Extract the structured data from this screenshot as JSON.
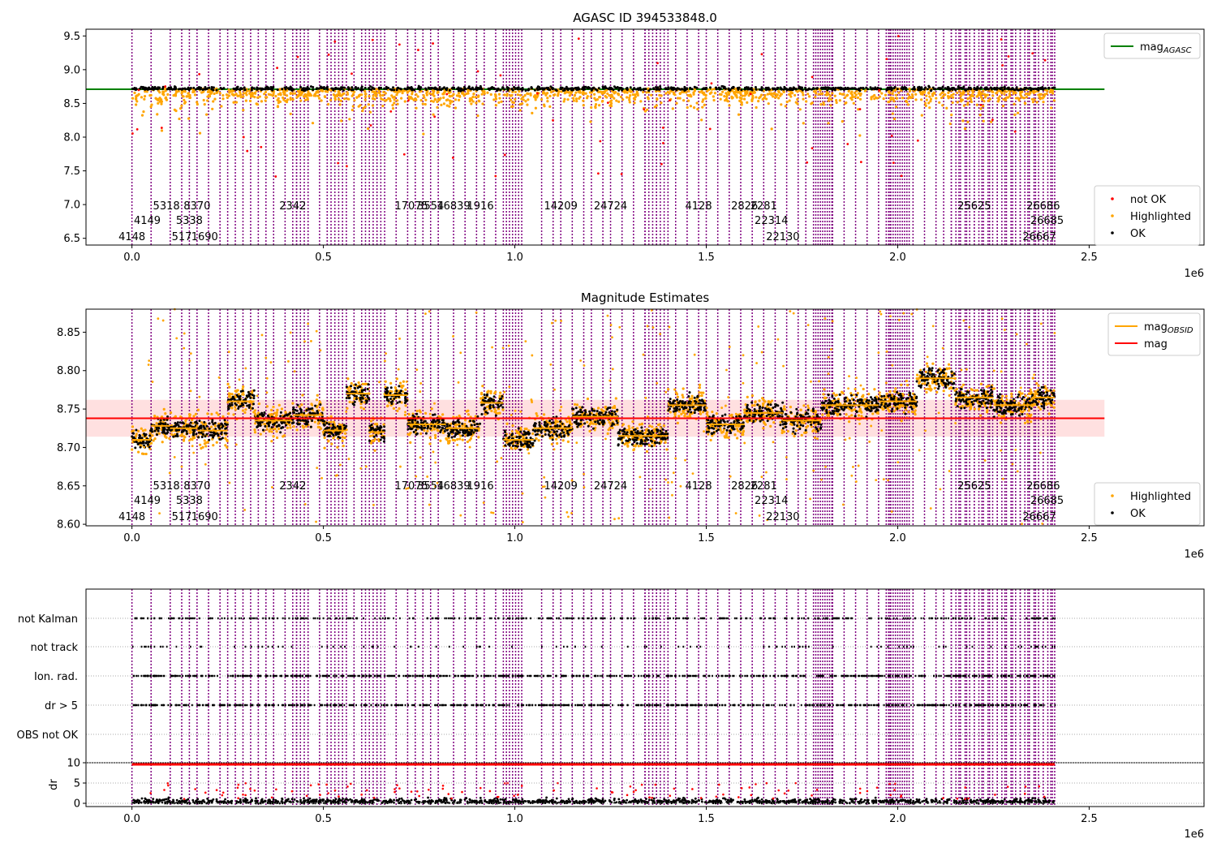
{
  "chart_data": [
    {
      "type": "scatter",
      "title": "AGASC ID 394533848.0",
      "x_exponent_label": "1e6",
      "xlim": [
        -0.12,
        2.8
      ],
      "ylim": [
        6.4,
        9.6
      ],
      "xticks": [
        0.0,
        0.5,
        1.0,
        1.5,
        2.0,
        2.5
      ],
      "xtick_labels": [
        "0.0",
        "0.5",
        "1.0",
        "1.5",
        "2.0",
        "2.5"
      ],
      "yticks": [
        6.5,
        7.0,
        7.5,
        8.0,
        8.5,
        9.0,
        9.5
      ],
      "ytick_labels": [
        "6.5",
        "7.0",
        "7.5",
        "8.0",
        "8.5",
        "9.0",
        "9.5"
      ],
      "legend_top": {
        "position": "top-right",
        "entries": [
          {
            "label": "mag",
            "sub": "AGASC",
            "color": "#008000",
            "kind": "line"
          }
        ]
      },
      "legend_bottom": {
        "position": "bottom-right",
        "entries": [
          {
            "label": "not OK",
            "color": "#ff0000",
            "kind": "dot"
          },
          {
            "label": "Highlighted",
            "color": "#ffa500",
            "kind": "dot"
          },
          {
            "label": "OK",
            "color": "#000000",
            "kind": "dot"
          }
        ]
      },
      "reference_line": {
        "y": 8.71,
        "x_range": [
          -0.12,
          2.54
        ],
        "color": "#008000"
      },
      "obsid_labels": [
        {
          "x": 0.0,
          "row": 0,
          "text": "4148"
        },
        {
          "x": 0.04,
          "row": 1,
          "text": "4149"
        },
        {
          "x": 0.09,
          "row": 2,
          "text": "5318"
        },
        {
          "x": 0.13,
          "row": 0,
          "text": "517"
        },
        {
          "x": 0.15,
          "row": 1,
          "text": "5338"
        },
        {
          "x": 0.17,
          "row": 2,
          "text": "8370"
        },
        {
          "x": 0.19,
          "row": 0,
          "text": "1690"
        },
        {
          "x": 0.42,
          "row": 2,
          "text": "2342"
        },
        {
          "x": 0.73,
          "row": 2,
          "text": "17075"
        },
        {
          "x": 0.78,
          "row": 2,
          "text": "3554"
        },
        {
          "x": 0.84,
          "row": 2,
          "text": "16839"
        },
        {
          "x": 0.91,
          "row": 2,
          "text": "1916"
        },
        {
          "x": 1.12,
          "row": 2,
          "text": "14209"
        },
        {
          "x": 1.25,
          "row": 2,
          "text": "24724"
        },
        {
          "x": 1.48,
          "row": 2,
          "text": "4128"
        },
        {
          "x": 1.6,
          "row": 2,
          "text": "2826"
        },
        {
          "x": 1.65,
          "row": 2,
          "text": "2281"
        },
        {
          "x": 1.67,
          "row": 1,
          "text": "22314"
        },
        {
          "x": 1.7,
          "row": 0,
          "text": "22130"
        },
        {
          "x": 2.2,
          "row": 2,
          "text": "25625"
        },
        {
          "x": 2.38,
          "row": 2,
          "text": "26686"
        },
        {
          "x": 2.39,
          "row": 1,
          "text": "26685"
        },
        {
          "x": 2.37,
          "row": 0,
          "text": "26667"
        }
      ],
      "note_ok_level": 8.72
    },
    {
      "type": "scatter",
      "title": "Magnitude Estimates",
      "x_exponent_label": "1e6",
      "xlim": [
        -0.12,
        2.8
      ],
      "ylim": [
        8.598,
        8.88
      ],
      "xticks": [
        0.0,
        0.5,
        1.0,
        1.5,
        2.0,
        2.5
      ],
      "xtick_labels": [
        "0.0",
        "0.5",
        "1.0",
        "1.5",
        "2.0",
        "2.5"
      ],
      "yticks": [
        8.6,
        8.65,
        8.7,
        8.75,
        8.8,
        8.85
      ],
      "ytick_labels": [
        "8.60",
        "8.65",
        "8.70",
        "8.75",
        "8.80",
        "8.85"
      ],
      "legend_top": {
        "position": "top-right",
        "entries": [
          {
            "label": "mag",
            "sub": "OBSID",
            "color": "#ffa500",
            "kind": "line"
          },
          {
            "label": "mag",
            "sub": "",
            "color": "#ff0000",
            "kind": "line"
          }
        ]
      },
      "legend_bottom": {
        "position": "bottom-right",
        "entries": [
          {
            "label": "Highlighted",
            "color": "#ffa500",
            "kind": "dot"
          },
          {
            "label": "OK",
            "color": "#000000",
            "kind": "dot"
          }
        ]
      },
      "mag_line": {
        "y": 8.738,
        "band": [
          8.714,
          8.762
        ],
        "x_range": [
          -0.12,
          2.54
        ],
        "color": "#ff0000"
      },
      "obsid_segments": [
        {
          "x0": 0.0,
          "x1": 0.05,
          "mag": 8.71
        },
        {
          "x0": 0.05,
          "x1": 0.1,
          "mag": 8.728
        },
        {
          "x0": 0.1,
          "x1": 0.17,
          "mag": 8.725
        },
        {
          "x0": 0.17,
          "x1": 0.25,
          "mag": 8.722
        },
        {
          "x0": 0.25,
          "x1": 0.32,
          "mag": 8.76
        },
        {
          "x0": 0.32,
          "x1": 0.42,
          "mag": 8.735
        },
        {
          "x0": 0.42,
          "x1": 0.5,
          "mag": 8.742
        },
        {
          "x0": 0.5,
          "x1": 0.56,
          "mag": 8.722
        },
        {
          "x0": 0.56,
          "x1": 0.62,
          "mag": 8.77
        },
        {
          "x0": 0.62,
          "x1": 0.66,
          "mag": 8.72
        },
        {
          "x0": 0.66,
          "x1": 0.72,
          "mag": 8.768
        },
        {
          "x0": 0.72,
          "x1": 0.82,
          "mag": 8.73
        },
        {
          "x0": 0.82,
          "x1": 0.91,
          "mag": 8.725
        },
        {
          "x0": 0.91,
          "x1": 0.97,
          "mag": 8.758
        },
        {
          "x0": 0.97,
          "x1": 1.05,
          "mag": 8.71
        },
        {
          "x0": 1.05,
          "x1": 1.15,
          "mag": 8.725
        },
        {
          "x0": 1.15,
          "x1": 1.27,
          "mag": 8.74
        },
        {
          "x0": 1.27,
          "x1": 1.4,
          "mag": 8.715
        },
        {
          "x0": 1.4,
          "x1": 1.5,
          "mag": 8.755
        },
        {
          "x0": 1.5,
          "x1": 1.6,
          "mag": 8.73
        },
        {
          "x0": 1.6,
          "x1": 1.7,
          "mag": 8.745
        },
        {
          "x0": 1.7,
          "x1": 1.8,
          "mag": 8.735
        },
        {
          "x0": 1.8,
          "x1": 1.95,
          "mag": 8.755
        },
        {
          "x0": 1.95,
          "x1": 2.05,
          "mag": 8.76
        },
        {
          "x0": 2.05,
          "x1": 2.15,
          "mag": 8.79
        },
        {
          "x0": 2.15,
          "x1": 2.25,
          "mag": 8.765
        },
        {
          "x0": 2.25,
          "x1": 2.35,
          "mag": 8.755
        },
        {
          "x0": 2.35,
          "x1": 2.41,
          "mag": 8.765
        }
      ]
    },
    {
      "type": "scatter",
      "title": "",
      "x_exponent_label": "1e6",
      "xlim": [
        -0.12,
        2.8
      ],
      "xticks": [
        0.0,
        0.5,
        1.0,
        1.5,
        2.0,
        2.5
      ],
      "xtick_labels": [
        "0.0",
        "0.5",
        "1.0",
        "1.5",
        "2.0",
        "2.5"
      ],
      "flag_rows": [
        "not Kalman",
        "not track",
        "Ion. rad.",
        "dr > 5",
        "OBS not OK"
      ],
      "flag_density": [
        0.55,
        0.15,
        0.97,
        0.97,
        0.0
      ],
      "dr_ylabel": "dr",
      "dr_ylim": [
        -0.2,
        10
      ],
      "dr_yticks": [
        0,
        5,
        10
      ],
      "dr_ytick_labels": [
        "0",
        "5",
        "10"
      ],
      "dr_threshold": 10
    }
  ]
}
